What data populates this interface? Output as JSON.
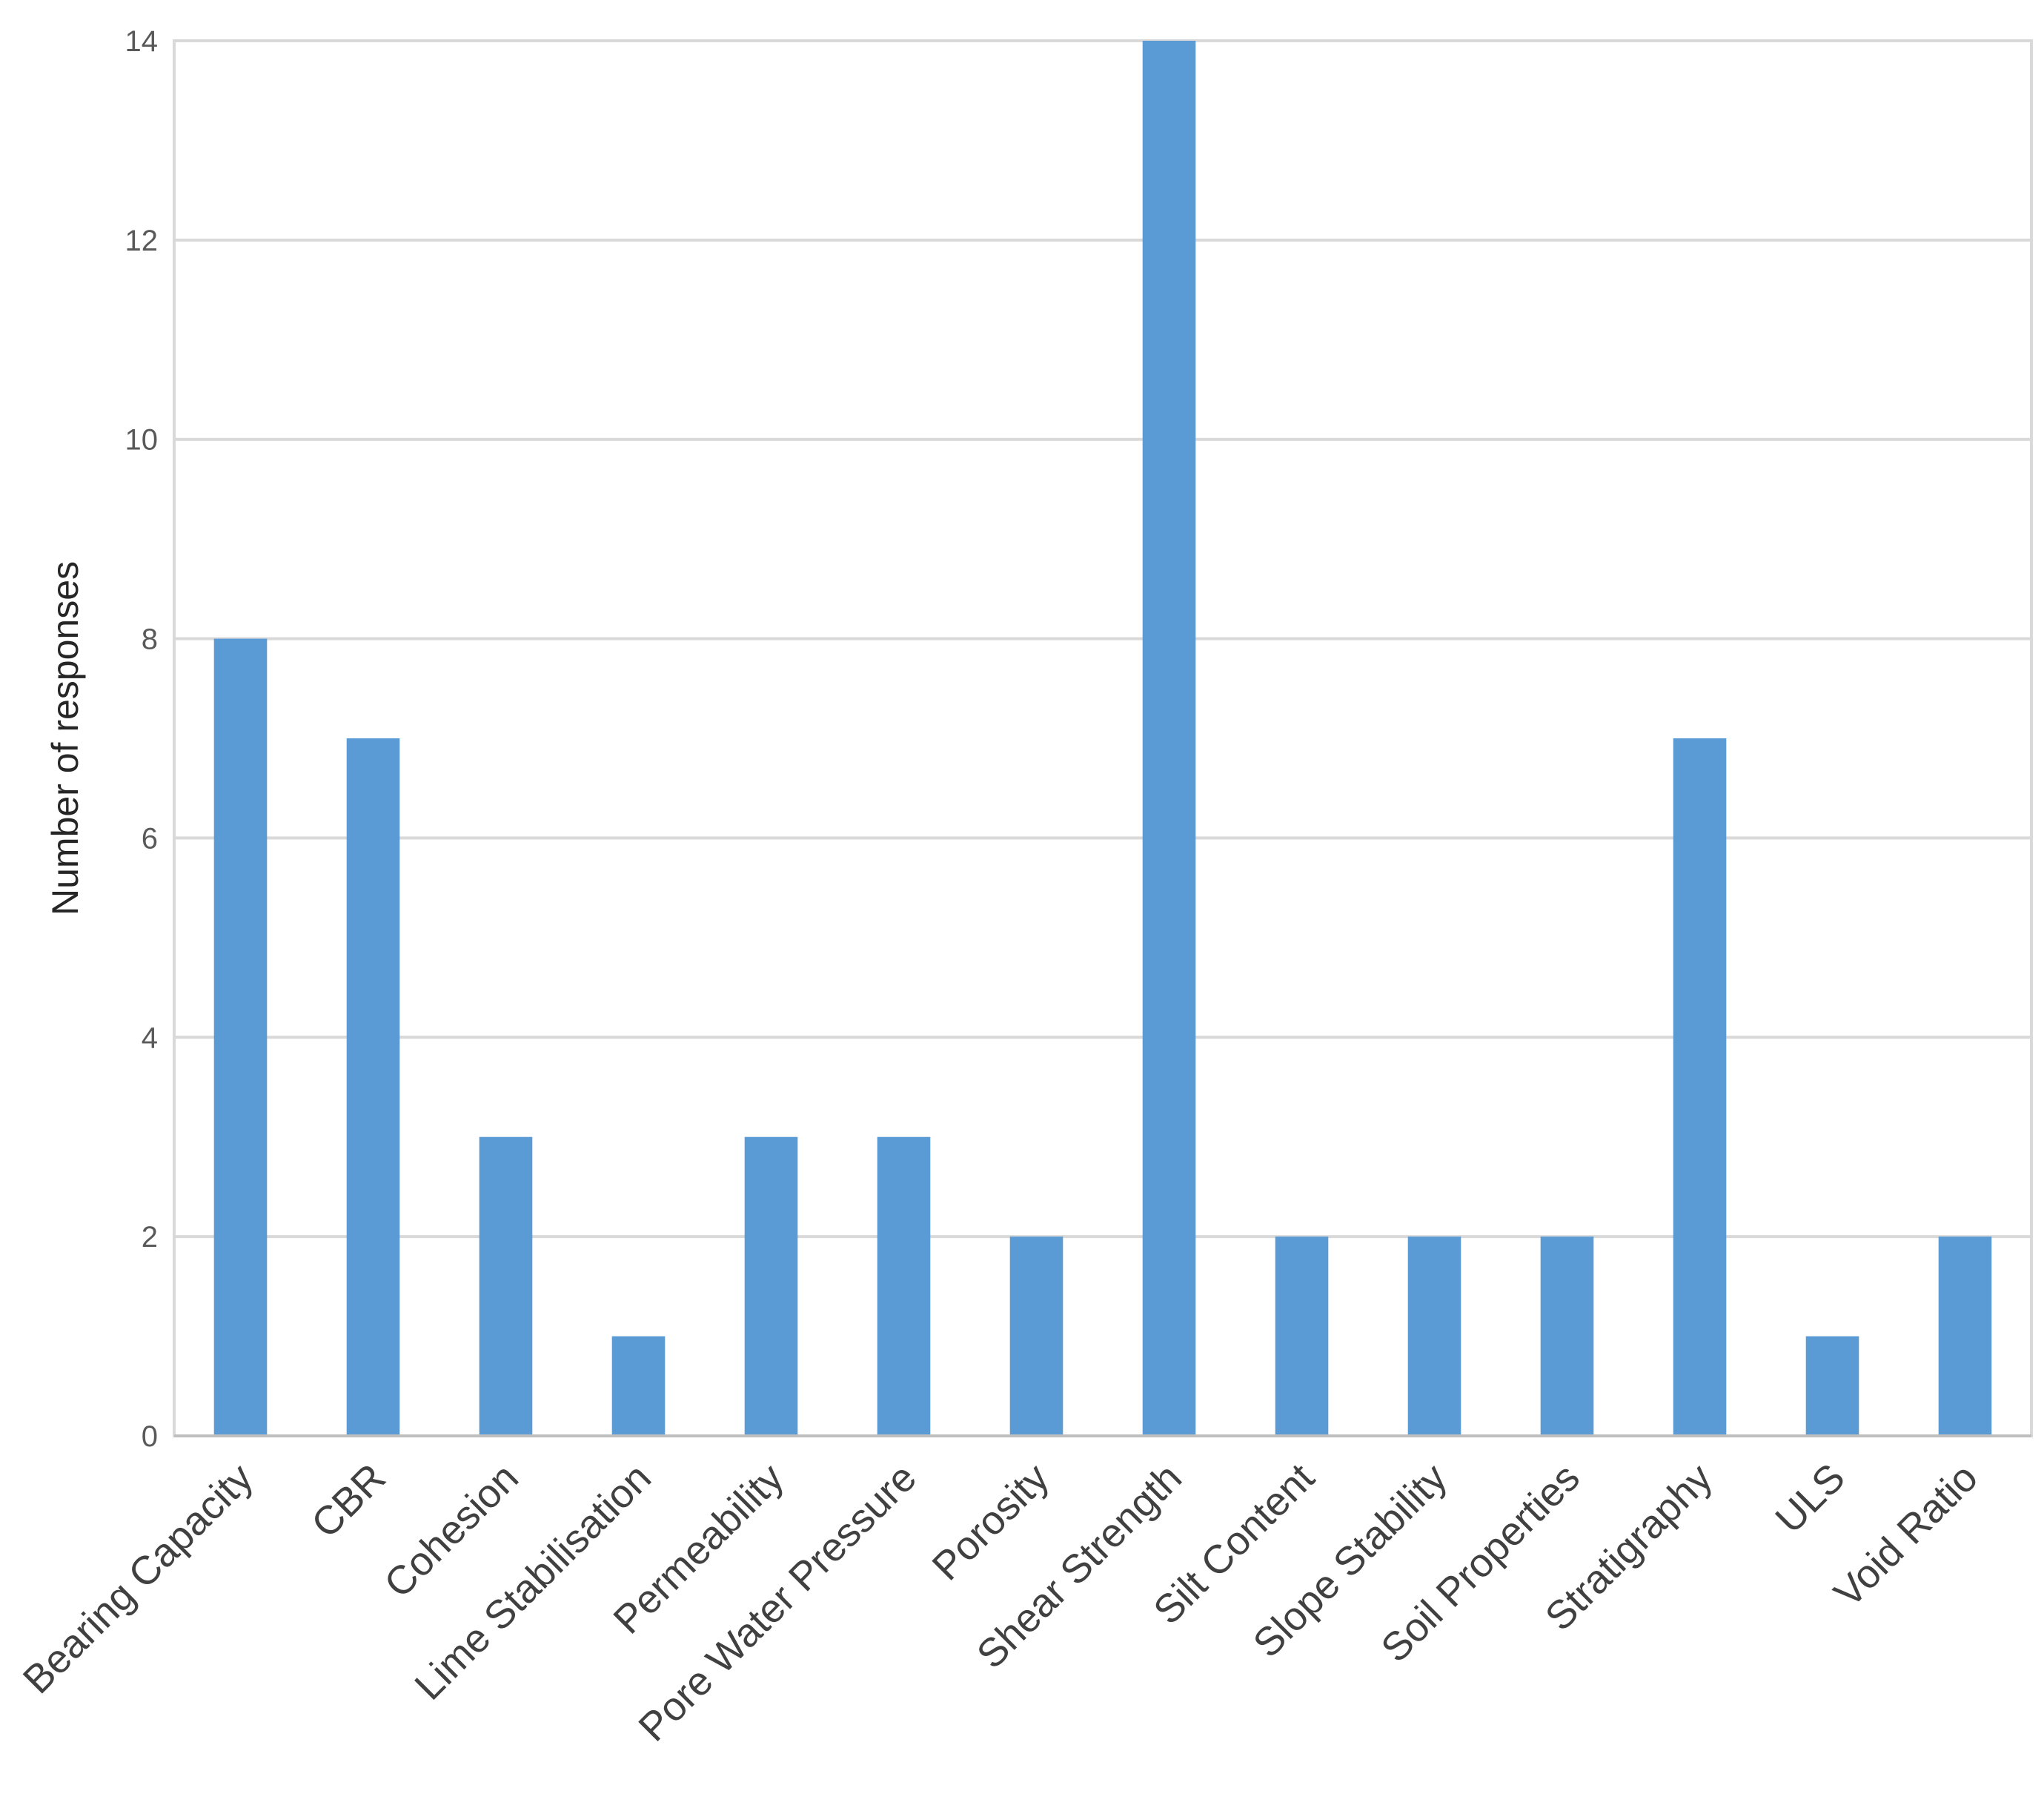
{
  "chart_data": {
    "type": "bar",
    "categories": [
      "Bearing Capacity",
      "CBR",
      "Cohesion",
      "Lime Stabilisation",
      "Permeability",
      "Pore Water Pressure",
      "Porosity",
      "Shear Strength",
      "Silt Content",
      "Slope Stability",
      "Soil Properties",
      "Stratigraphy",
      "ULS",
      "Void Ratio"
    ],
    "values": [
      8,
      7,
      3,
      1,
      3,
      3,
      2,
      14,
      2,
      2,
      2,
      7,
      1,
      2
    ],
    "title": "",
    "xlabel": "",
    "ylabel": "Number of responses",
    "ylim": [
      0,
      14
    ],
    "yticks": [
      0,
      2,
      4,
      6,
      8,
      10,
      12,
      14
    ],
    "grid": true,
    "legend": "none",
    "bar_color": "#5b9bd5"
  }
}
